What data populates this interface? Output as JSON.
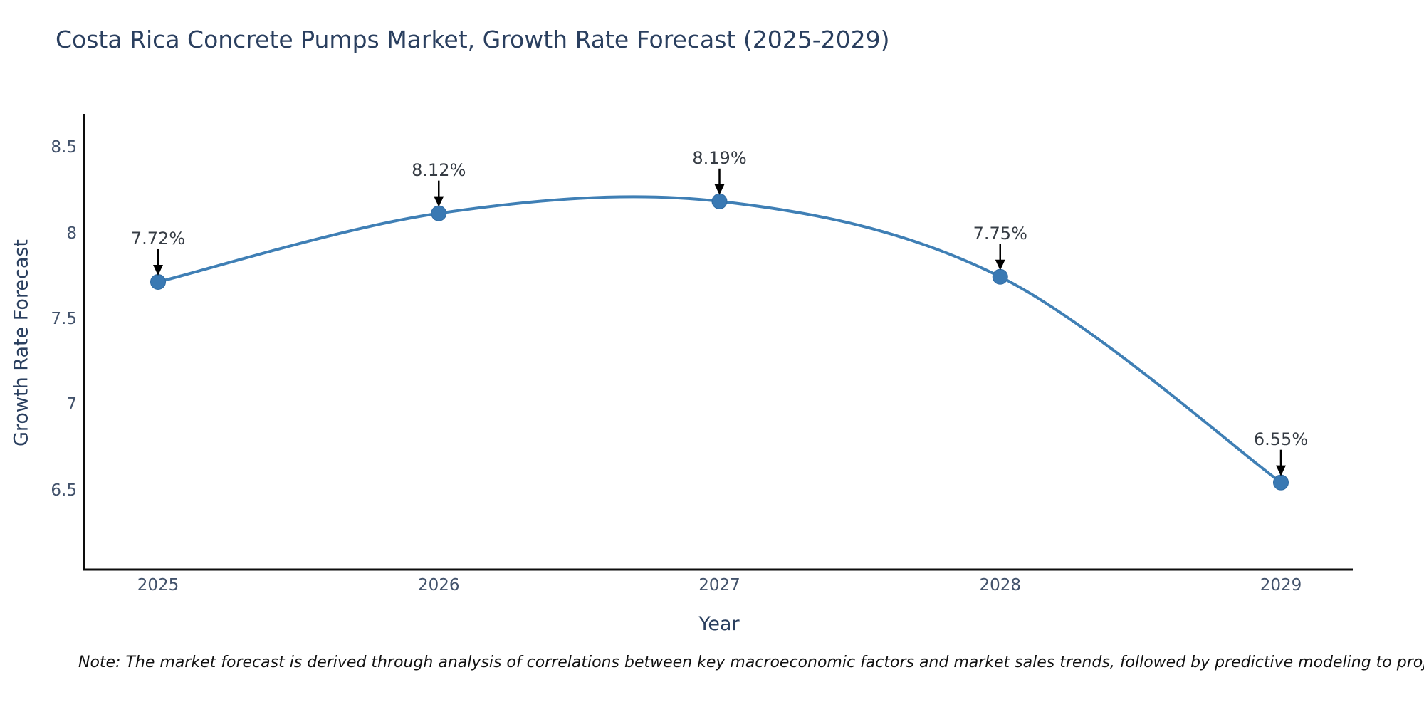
{
  "chart_data": {
    "type": "line",
    "title": "Costa Rica Concrete Pumps Market, Growth Rate Forecast (2025-2029)",
    "xlabel": "Year",
    "ylabel": "Growth Rate Forecast",
    "x": [
      2025,
      2026,
      2027,
      2028,
      2029
    ],
    "x_tick_labels": [
      "2025",
      "2026",
      "2027",
      "2028",
      "2029"
    ],
    "values": [
      7.72,
      8.12,
      8.19,
      7.75,
      6.55
    ],
    "point_labels": [
      "7.72%",
      "8.12%",
      "8.19%",
      "7.75%",
      "6.55%"
    ],
    "y_ticks": [
      8.5,
      8.0,
      7.5,
      7.0,
      6.5
    ],
    "y_tick_labels": [
      "8.5",
      "8",
      "7.5",
      "7",
      "6.5"
    ],
    "ylim": [
      6.042,
      8.7
    ],
    "grid": false,
    "legend": "none",
    "line_shape": "spline",
    "line_color": "#3F7FB5",
    "marker_color": "#3A79B3",
    "marker_edge_color": "#2F6BA3",
    "axis_line_color": "#0d0d0d",
    "annotation_arrow_color": "#000000"
  },
  "note": "Note: The market forecast is derived through analysis of correlations between key macroeconomic factors and market sales trends, followed by predictive modeling to project future sales"
}
